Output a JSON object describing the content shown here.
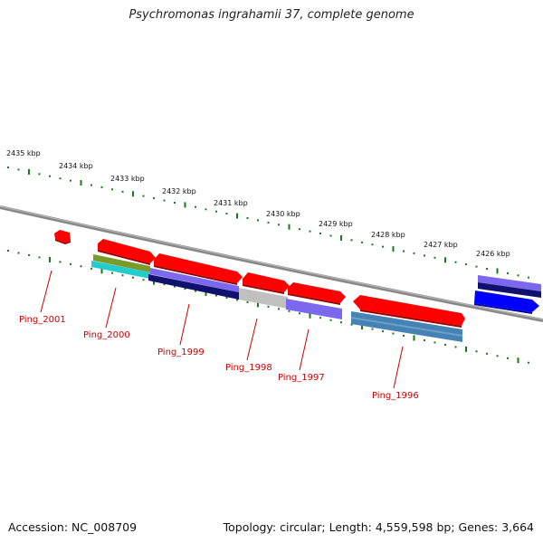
{
  "title": "Psychromonas ingrahamii 37, complete genome",
  "footer": {
    "accession": "Accession: NC_008709",
    "topology": "Topology: circular; Length: 4,559,598 bp; Genes: 3,664"
  },
  "ruler": {
    "labels": [
      "2435 kbp",
      "2434 kbp",
      "2433 kbp",
      "2432 kbp",
      "2431 kbp",
      "2430 kbp",
      "2429 kbp",
      "2428 kbp",
      "2427 kbp",
      "2426 kbp"
    ]
  },
  "genes": [
    {
      "id": "gene-ping-2001",
      "label": "Ping_2001"
    },
    {
      "id": "gene-ping-2000",
      "label": "Ping_2000"
    },
    {
      "id": "gene-ping-1999",
      "label": "Ping_1999"
    },
    {
      "id": "gene-ping-1998",
      "label": "Ping_1998"
    },
    {
      "id": "gene-ping-1997",
      "label": "Ping_1997"
    },
    {
      "id": "gene-ping-1996",
      "label": "Ping_1996"
    }
  ],
  "colors": {
    "gene_arrow": "#ff0000",
    "gene_label": "#cc0000",
    "backbone": "#808080",
    "ticks": "#1a7a1a",
    "blue_arrow": "#0000ff",
    "track_olive": "#7a9a2a",
    "track_cyan": "#22cccc",
    "track_slate_blue": "#7b68ee",
    "track_navy": "#10106e",
    "track_silver": "#c0c0c0",
    "track_steel_blue": "#4682b4"
  }
}
